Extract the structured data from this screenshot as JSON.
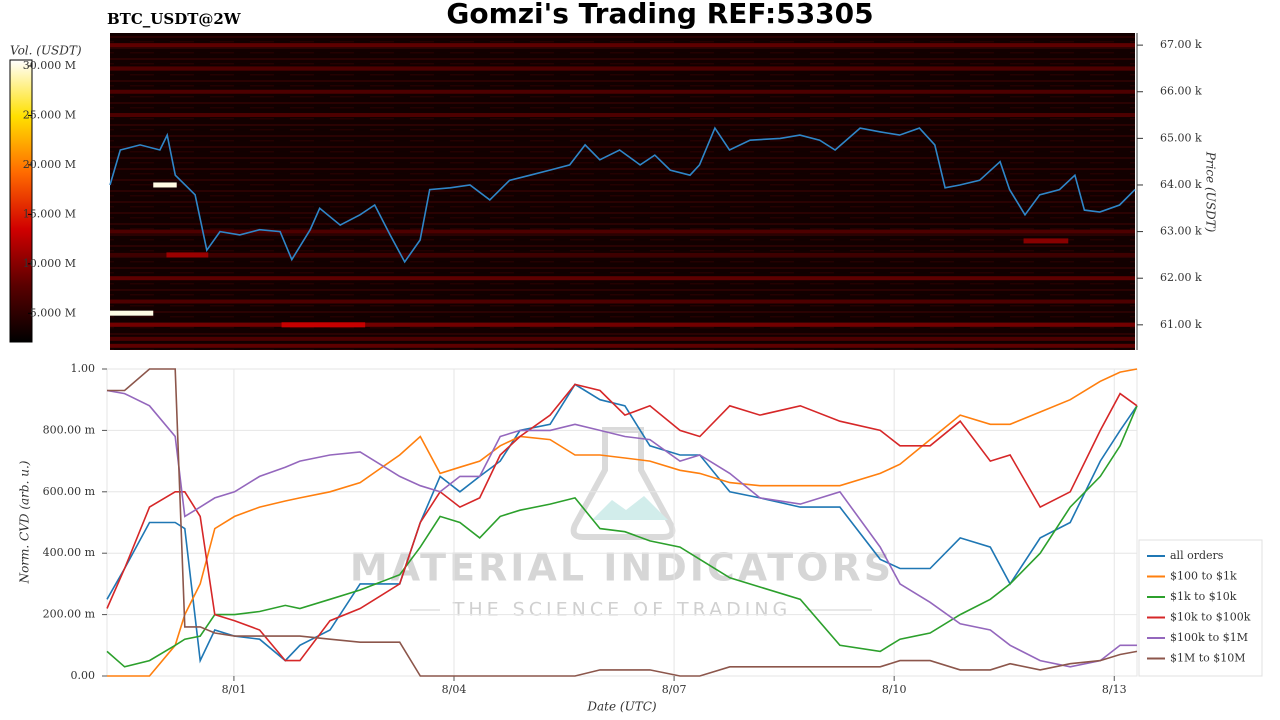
{
  "chart_data": [
    {
      "type": "heatmap",
      "title": "Gomzi's Trading REF:53305",
      "subtitle": "BTC_USDT@2W",
      "colorbar_label": "Vol. (USDT)",
      "clim": [
        2.1,
        30.6
      ],
      "cticks": [
        {
          "value": 5,
          "label": "5.000 M"
        },
        {
          "value": 10,
          "label": "10.000 M"
        },
        {
          "value": 15,
          "label": "15.000 M"
        },
        {
          "value": 20,
          "label": "20.000 M"
        },
        {
          "value": 25,
          "label": "25.000 M"
        },
        {
          "value": 30,
          "label": "30.000 M"
        }
      ],
      "colormap": [
        "#000000",
        "#5a0000",
        "#d00000",
        "#ff6a00",
        "#ffe000",
        "#ffffff"
      ],
      "ylabel": "Price (USDT)",
      "ylim": [
        60.46,
        67.26
      ],
      "yticks": [
        {
          "value": 61,
          "label": "61.00 k"
        },
        {
          "value": 62,
          "label": "62.00 k"
        },
        {
          "value": 63,
          "label": "63.00 k"
        },
        {
          "value": 64,
          "label": "64.00 k"
        },
        {
          "value": 65,
          "label": "65.00 k"
        },
        {
          "value": 66,
          "label": "66.00 k"
        },
        {
          "value": 67,
          "label": "67.00 k"
        }
      ],
      "xlim": [
        -0.69,
        13.29
      ],
      "levels": {
        "price": [
          67.0,
          66.5,
          66.0,
          65.5,
          63.0,
          62.5,
          62.0,
          61.5,
          61.0,
          60.7,
          60.55
        ],
        "volume": [
          8,
          7,
          7,
          7,
          7,
          6,
          8,
          7,
          9,
          7,
          8
        ]
      },
      "walls": {
        "x_start": [
          -0.1,
          -0.69,
          1.65,
          0.08,
          11.77
        ],
        "x_end": [
          0.22,
          -0.1,
          2.79,
          0.65,
          12.38
        ],
        "price": [
          64.0,
          61.25,
          61.0,
          62.5,
          62.8
        ],
        "volume": [
          30,
          30,
          13,
          11,
          10
        ]
      },
      "line": {
        "color": "#2f86c8",
        "x": [
          -0.69,
          -0.55,
          -0.28,
          -0.01,
          0.09,
          0.2,
          0.47,
          0.63,
          0.81,
          1.08,
          1.35,
          1.63,
          1.79,
          2.04,
          2.17,
          2.45,
          2.72,
          2.92,
          3.13,
          3.33,
          3.54,
          3.67,
          3.95,
          4.22,
          4.49,
          4.76,
          5.04,
          5.31,
          5.58,
          5.79,
          5.99,
          6.26,
          6.54,
          6.74,
          6.95,
          7.22,
          7.35,
          7.56,
          7.76,
          8.04,
          8.45,
          8.72,
          8.99,
          9.2,
          9.54,
          9.81,
          10.08,
          10.35,
          10.56,
          10.7,
          10.9,
          11.17,
          11.45,
          11.58,
          11.79,
          11.99,
          12.26,
          12.47,
          12.6,
          12.81,
          13.08,
          13.29
        ],
        "values": [
          64.0,
          64.75,
          64.86,
          64.75,
          65.07,
          64.21,
          63.79,
          62.6,
          63.0,
          62.93,
          63.04,
          63.0,
          62.4,
          63.04,
          63.5,
          63.14,
          63.36,
          63.57,
          62.93,
          62.35,
          62.82,
          63.9,
          63.94,
          64.0,
          63.68,
          64.1,
          64.21,
          64.32,
          64.43,
          64.86,
          64.54,
          64.75,
          64.43,
          64.64,
          64.32,
          64.21,
          64.43,
          65.22,
          64.75,
          64.96,
          65.0,
          65.07,
          64.96,
          64.75,
          65.22,
          65.14,
          65.07,
          65.22,
          64.86,
          63.94,
          64.0,
          64.1,
          64.5,
          63.9,
          63.36,
          63.79,
          63.9,
          64.21,
          63.46,
          63.42,
          63.57,
          63.9
        ]
      }
    },
    {
      "type": "line",
      "xlabel": "Date (UTC)",
      "ylabel": "Norm. CVD (arb. u.)",
      "xlim": [
        -0.73,
        13.31
      ],
      "xticks": [
        {
          "value": 1,
          "label": "8/01"
        },
        {
          "value": 4,
          "label": "8/04"
        },
        {
          "value": 7,
          "label": "8/07"
        },
        {
          "value": 10,
          "label": "8/10"
        },
        {
          "value": 13,
          "label": "8/13"
        }
      ],
      "ylim": [
        0,
        1
      ],
      "yticks": [
        {
          "value": 0,
          "label": "0.00"
        },
        {
          "value": 0.2,
          "label": "200.00 m"
        },
        {
          "value": 0.4,
          "label": "400.00 m"
        },
        {
          "value": 0.6,
          "label": "600.00 m"
        },
        {
          "value": 0.8,
          "label": "800.00 m"
        },
        {
          "value": 1,
          "label": "1.00"
        }
      ],
      "grid": true,
      "legend": "lower right",
      "annotations": [
        "MATERIAL INDICATORS",
        "THE SCIENCE OF TRADING"
      ],
      "x": [
        -0.73,
        -0.49,
        -0.15,
        0.2,
        0.33,
        0.54,
        0.74,
        1.01,
        1.35,
        1.7,
        1.9,
        2.31,
        2.72,
        3.26,
        3.54,
        3.81,
        4.08,
        4.35,
        4.63,
        4.9,
        5.31,
        5.65,
        5.99,
        6.33,
        6.67,
        7.08,
        7.35,
        7.76,
        8.17,
        8.72,
        9.26,
        9.81,
        10.08,
        10.49,
        10.9,
        11.31,
        11.58,
        11.99,
        12.4,
        12.81,
        13.08,
        13.31
      ],
      "series": [
        {
          "name": "all orders",
          "color": "#1f77b4",
          "values": [
            0.25,
            0.35,
            0.5,
            0.5,
            0.48,
            0.05,
            0.15,
            0.13,
            0.12,
            0.05,
            0.1,
            0.15,
            0.3,
            0.3,
            0.5,
            0.65,
            0.6,
            0.65,
            0.7,
            0.8,
            0.82,
            0.95,
            0.9,
            0.88,
            0.75,
            0.72,
            0.72,
            0.6,
            0.58,
            0.55,
            0.55,
            0.38,
            0.35,
            0.35,
            0.45,
            0.42,
            0.3,
            0.45,
            0.5,
            0.7,
            0.8,
            0.88
          ]
        },
        {
          "name": "$100 to $1k",
          "color": "#ff7f0e",
          "values": [
            0.0,
            0.0,
            0.0,
            0.1,
            0.2,
            0.3,
            0.48,
            0.52,
            0.55,
            0.57,
            0.58,
            0.6,
            0.63,
            0.72,
            0.78,
            0.66,
            0.68,
            0.7,
            0.75,
            0.78,
            0.77,
            0.72,
            0.72,
            0.71,
            0.7,
            0.67,
            0.66,
            0.63,
            0.62,
            0.62,
            0.62,
            0.66,
            0.69,
            0.77,
            0.85,
            0.82,
            0.82,
            0.86,
            0.9,
            0.96,
            0.99,
            1.0
          ]
        },
        {
          "name": "$1k to $10k",
          "color": "#2ca02c",
          "values": [
            0.08,
            0.03,
            0.05,
            0.1,
            0.12,
            0.13,
            0.2,
            0.2,
            0.21,
            0.23,
            0.22,
            0.25,
            0.28,
            0.33,
            0.42,
            0.52,
            0.5,
            0.45,
            0.52,
            0.54,
            0.56,
            0.58,
            0.48,
            0.47,
            0.44,
            0.42,
            0.38,
            0.32,
            0.29,
            0.25,
            0.1,
            0.08,
            0.12,
            0.14,
            0.2,
            0.25,
            0.3,
            0.4,
            0.55,
            0.65,
            0.75,
            0.88
          ]
        },
        {
          "name": "$10k to $100k",
          "color": "#d62728",
          "values": [
            0.22,
            0.35,
            0.55,
            0.6,
            0.6,
            0.52,
            0.2,
            0.18,
            0.15,
            0.05,
            0.05,
            0.18,
            0.22,
            0.3,
            0.5,
            0.6,
            0.55,
            0.58,
            0.72,
            0.78,
            0.85,
            0.95,
            0.93,
            0.85,
            0.88,
            0.8,
            0.78,
            0.88,
            0.85,
            0.88,
            0.83,
            0.8,
            0.75,
            0.75,
            0.83,
            0.7,
            0.72,
            0.55,
            0.6,
            0.8,
            0.92,
            0.88
          ]
        },
        {
          "name": "$100k to $1M",
          "color": "#9467bd",
          "values": [
            0.93,
            0.92,
            0.88,
            0.78,
            0.52,
            0.55,
            0.58,
            0.6,
            0.65,
            0.68,
            0.7,
            0.72,
            0.73,
            0.65,
            0.62,
            0.6,
            0.65,
            0.65,
            0.78,
            0.8,
            0.8,
            0.82,
            0.8,
            0.78,
            0.77,
            0.7,
            0.72,
            0.66,
            0.58,
            0.56,
            0.6,
            0.42,
            0.3,
            0.24,
            0.17,
            0.15,
            0.1,
            0.05,
            0.03,
            0.05,
            0.1,
            0.1
          ]
        },
        {
          "name": "$1M to $10M",
          "color": "#8c564b",
          "values": [
            0.93,
            0.93,
            1.0,
            1.0,
            0.16,
            0.16,
            0.14,
            0.13,
            0.13,
            0.13,
            0.13,
            0.12,
            0.11,
            0.11,
            0.0,
            0.0,
            0.0,
            0.0,
            0.0,
            0.0,
            0.0,
            0.0,
            0.02,
            0.02,
            0.02,
            0.0,
            0.0,
            0.03,
            0.03,
            0.03,
            0.03,
            0.03,
            0.05,
            0.05,
            0.02,
            0.02,
            0.04,
            0.02,
            0.04,
            0.05,
            0.07,
            0.08
          ]
        }
      ]
    }
  ]
}
